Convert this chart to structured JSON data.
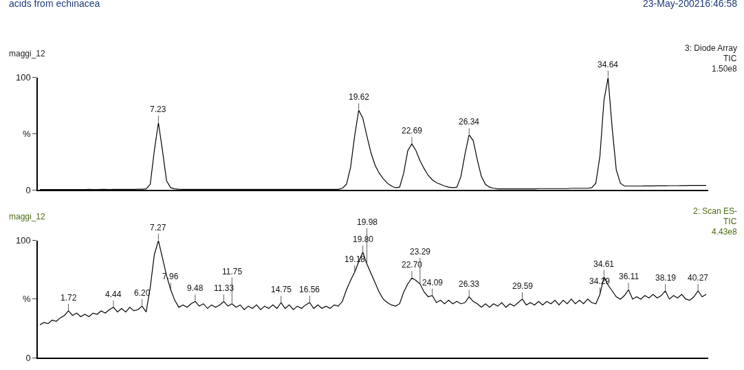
{
  "chart_data": [
    {
      "type": "line",
      "title": "acids from echinacea",
      "subtitle": "maggi_12",
      "annotations": [
        "23-May-200216:46:58",
        "3: Diode Array",
        "TIC",
        "1.50e8",
        {
          "text": "7.23",
          "y": 60
        },
        {
          "text": "19.62",
          "y": 71
        },
        {
          "text": "22.69",
          "y": 41
        },
        {
          "text": "26.34",
          "y": 49
        },
        {
          "text": "34.64",
          "y": 100
        }
      ],
      "categories": [
        null,
        null,
        null,
        null,
        null,
        null,
        null,
        null,
        null,
        null,
        null,
        null,
        null,
        null,
        null,
        null,
        null,
        null,
        null,
        null,
        null,
        null,
        null,
        null,
        null,
        null,
        null,
        null,
        null,
        null,
        null,
        null,
        null,
        null,
        null,
        null,
        null,
        null,
        null,
        null,
        null,
        null,
        null,
        null,
        null,
        null,
        null,
        null,
        null,
        null,
        null,
        null,
        null,
        null,
        null,
        null,
        null,
        null,
        null,
        null,
        null,
        null,
        null,
        null,
        null,
        null,
        null,
        null,
        null,
        null,
        null,
        null,
        null,
        null,
        null,
        null,
        null,
        null,
        null,
        null,
        null,
        null,
        null,
        null,
        null,
        null,
        null,
        null,
        null,
        null,
        null,
        null,
        null,
        null,
        null,
        null,
        null,
        null,
        null,
        null,
        null,
        null,
        null,
        null,
        null,
        null,
        null,
        null,
        null,
        null,
        null,
        null,
        null,
        null,
        null,
        null,
        null,
        null,
        null,
        null,
        null,
        null,
        null,
        null,
        null,
        null,
        null,
        null,
        null,
        null,
        null,
        null,
        null,
        null,
        null,
        null,
        null,
        null,
        null,
        null,
        null,
        null,
        null,
        null,
        null,
        null,
        null,
        null,
        null,
        null,
        null,
        null,
        null,
        null,
        null,
        null,
        null,
        null,
        null,
        null,
        null,
        null,
        null,
        null
      ],
      "values": [
        0.3,
        0.3,
        0.4,
        0.3,
        0.3,
        0.4,
        0.3,
        0.3,
        0.4,
        0.4,
        0.3,
        0.4,
        0.5,
        0.4,
        0.4,
        0.5,
        0.5,
        0.4,
        0.5,
        0.5,
        0.5,
        0.5,
        0.5,
        0.5,
        0.6,
        0.6,
        1,
        5,
        35,
        60,
        35,
        8,
        2,
        1,
        0.6,
        0.5,
        0.5,
        0.5,
        0.5,
        0.5,
        0.5,
        0.5,
        0.5,
        0.5,
        0.5,
        0.5,
        0.5,
        0.5,
        0.5,
        0.5,
        0.5,
        0.5,
        0.5,
        0.5,
        0.5,
        0.5,
        0.5,
        0.5,
        0.5,
        0.5,
        0.5,
        0.5,
        0.5,
        0.5,
        0.5,
        0.5,
        0.5,
        0.5,
        0.5,
        0.5,
        0.5,
        0.5,
        0.5,
        0.5,
        1.5,
        5,
        20,
        48,
        71,
        64,
        48,
        33,
        22,
        15,
        10,
        6,
        3.5,
        2,
        2.5,
        15,
        35,
        41,
        35,
        26,
        19,
        13,
        9,
        6.5,
        5,
        3.5,
        2.5,
        2,
        2.5,
        12,
        32,
        49,
        44,
        27,
        12,
        5,
        2.5,
        1.5,
        1,
        1,
        1,
        1,
        1,
        1,
        1,
        1,
        1,
        1,
        1.2,
        1.2,
        1.2,
        1.2,
        1.2,
        1.2,
        1.2,
        1.2,
        1.5,
        1.5,
        1.5,
        1.5,
        1.5,
        2,
        6,
        30,
        80,
        100,
        55,
        18,
        6,
        3.5,
        3.5,
        3.5,
        3.5,
        3.5,
        3.6,
        3.6,
        3.6,
        3.7,
        3.7,
        3.7,
        3.8,
        3.8,
        3.8,
        3.9,
        3.9,
        4,
        4,
        4,
        4,
        4
      ],
      "color": "#000000",
      "ylim": [
        0,
        100
      ],
      "yticks": [
        0,
        {
          "value": 50,
          "label": "%"
        },
        100
      ],
      "tick_labels": "y",
      "line_style": "solid"
    },
    {
      "type": "line",
      "subtitle": "maggi_12",
      "annotations": [
        "2: Scan ES-",
        "TIC",
        "4.43e8",
        {
          "text": "1.72",
          "y": 40
        },
        {
          "text": "4.44",
          "y": 43
        },
        {
          "text": "6.20",
          "y": 44
        },
        {
          "text": "7.27",
          "y": 100
        },
        {
          "text": "7.96",
          "y": 58
        },
        {
          "text": "9.48",
          "y": 48
        },
        {
          "text": "11.33",
          "y": 48
        },
        {
          "text": "11.75",
          "y": 46
        },
        {
          "text": "14.75",
          "y": 47
        },
        {
          "text": "16.56",
          "y": 47
        },
        {
          "text": "19.18",
          "y": 73
        },
        {
          "text": "19.80",
          "y": 90
        },
        {
          "text": "19.98",
          "y": 80
        },
        {
          "text": "22.70",
          "y": 68
        },
        {
          "text": "23.29",
          "y": 63
        },
        {
          "text": "24.09",
          "y": 53
        },
        {
          "text": "26.33",
          "y": 52
        },
        {
          "text": "29.59",
          "y": 50
        },
        {
          "text": "34.29",
          "y": 54
        },
        {
          "text": "34.61",
          "y": 69
        },
        {
          "text": "36.11",
          "y": 58
        },
        {
          "text": "38.19",
          "y": 57
        },
        {
          "text": "40.27",
          "y": 57
        }
      ],
      "categories": [
        null,
        null,
        null,
        null,
        null,
        null,
        null,
        null,
        null,
        null,
        null,
        null,
        null,
        null,
        null,
        null,
        null,
        null,
        null,
        null,
        null,
        null,
        null,
        null,
        null,
        null,
        null,
        null,
        null,
        null,
        null,
        null,
        null,
        null,
        null,
        null,
        null,
        null,
        null,
        null,
        null,
        null,
        null,
        null,
        null,
        null,
        null,
        null,
        null,
        null,
        null,
        null,
        null,
        null,
        null,
        null,
        null,
        null,
        null,
        null,
        null,
        null,
        null,
        null,
        null,
        null,
        null,
        null,
        null,
        null,
        null,
        null,
        null,
        null,
        null,
        null,
        null,
        null,
        null,
        null,
        null,
        null,
        null,
        null,
        null,
        null,
        null,
        null,
        null,
        null,
        null,
        null,
        null,
        null,
        null,
        null,
        null,
        null,
        null,
        null,
        null,
        null,
        null,
        null,
        null,
        null,
        null,
        null,
        null,
        null,
        null,
        null,
        null,
        null,
        null,
        null,
        null,
        null,
        null,
        null,
        null,
        null,
        null,
        null,
        null,
        null,
        null,
        null,
        null,
        null,
        null,
        null,
        null,
        null,
        null,
        null,
        null,
        null,
        null,
        null,
        null,
        null,
        null,
        null,
        null,
        null,
        null,
        null,
        null,
        null,
        null,
        null,
        null,
        null,
        null,
        null,
        null,
        null,
        null,
        null,
        null,
        null,
        null,
        null
      ],
      "values": [
        28,
        30,
        29,
        32,
        31,
        34,
        36,
        40,
        36,
        38,
        35,
        37,
        35,
        38,
        37,
        40,
        38,
        41,
        43,
        39,
        42,
        39,
        43,
        40,
        41,
        44,
        39,
        60,
        88,
        100,
        85,
        70,
        58,
        49,
        43,
        45,
        43,
        46,
        48,
        44,
        46,
        42,
        45,
        43,
        45,
        48,
        44,
        46,
        43,
        45,
        41,
        44,
        42,
        45,
        41,
        44,
        42,
        45,
        42,
        47,
        42,
        45,
        41,
        44,
        42,
        45,
        47,
        42,
        45,
        42,
        44,
        42,
        45,
        44,
        48,
        58,
        66,
        73,
        82,
        90,
        80,
        72,
        64,
        56,
        50,
        47,
        45,
        44,
        46,
        56,
        63,
        68,
        66,
        63,
        56,
        52,
        53,
        47,
        49,
        46,
        49,
        46,
        48,
        46,
        47,
        52,
        48,
        46,
        43,
        46,
        43,
        46,
        44,
        47,
        43,
        46,
        44,
        47,
        50,
        45,
        47,
        45,
        48,
        45,
        48,
        46,
        49,
        45,
        49,
        46,
        50,
        46,
        49,
        46,
        50,
        47,
        46,
        54,
        69,
        62,
        57,
        52,
        50,
        53,
        58,
        50,
        52,
        50,
        53,
        51,
        54,
        51,
        53,
        57,
        50,
        53,
        51,
        54,
        50,
        49,
        52,
        57,
        52,
        54
      ],
      "color": "#000000",
      "ylim": [
        0,
        100
      ],
      "yticks": [
        0,
        {
          "value": 50,
          "label": "%"
        },
        100
      ],
      "tick_labels": "y",
      "line_style": "solid"
    }
  ]
}
